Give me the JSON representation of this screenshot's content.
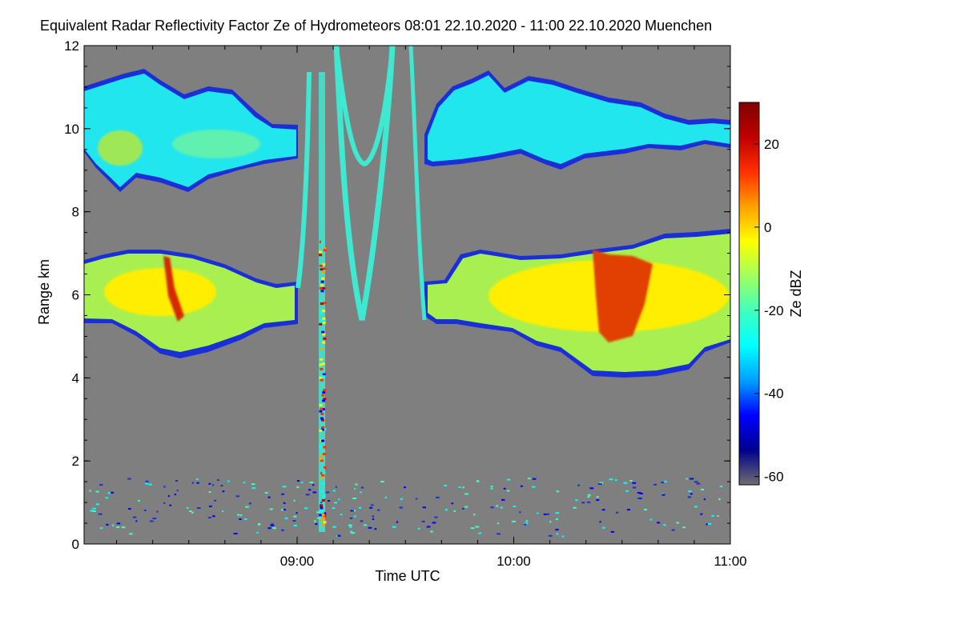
{
  "chart_data": {
    "type": "heatmap",
    "title": "Equivalent Radar Reflectivity Factor Ze of Hydrometeors   08:01 22.10.2020 - 11:00 22.10.2020 Muenchen",
    "xlabel": "Time UTC",
    "ylabel": "Range km",
    "x_range_hours": [
      8.0167,
      11.0
    ],
    "ylim": [
      0,
      12
    ],
    "x_ticks": [
      {
        "label": "09:00",
        "value": 9.0
      },
      {
        "label": "10:00",
        "value": 10.0
      },
      {
        "label": "11:00",
        "value": 11.0
      }
    ],
    "y_ticks": [
      0,
      2,
      4,
      6,
      8,
      10,
      12
    ],
    "colorbar": {
      "label": "Ze dBZ",
      "range": [
        -62,
        30
      ],
      "ticks": [
        20,
        0,
        -20,
        -40,
        -60
      ],
      "colors": [
        "#6e6e6e",
        "#00008f",
        "#0000ff",
        "#00a0ff",
        "#00ffff",
        "#40ffc0",
        "#a0ff60",
        "#ffff00",
        "#ffa000",
        "#ff3000",
        "#c00000",
        "#800000"
      ]
    },
    "background_color": "#7f7f7f",
    "features": [
      {
        "name": "upper-cloud-layer-early",
        "time_start": 8.02,
        "time_end": 9.0,
        "range_bottom_km": 8.6,
        "range_top_km": 11.0,
        "ze_typical_dbz": -20
      },
      {
        "name": "lower-cloud-layer-early",
        "time_start": 8.02,
        "time_end": 9.0,
        "range_bottom_km": 4.5,
        "range_top_km": 7.0,
        "ze_max_dbz": 15
      },
      {
        "name": "upper-cloud-layer-late",
        "time_start": 9.6,
        "time_end": 11.0,
        "range_bottom_km": 9.0,
        "range_top_km": 11.4,
        "ze_typical_dbz": -22
      },
      {
        "name": "lower-cloud-layer-late",
        "time_start": 9.6,
        "time_end": 11.0,
        "range_bottom_km": 4.0,
        "range_top_km": 7.5,
        "ze_max_dbz": 15
      },
      {
        "name": "clutter-streak",
        "time_start": 9.1,
        "time_end": 9.14,
        "range_bottom_km": 0.1,
        "range_top_km": 7.0,
        "ze_max_dbz": 25
      }
    ]
  }
}
